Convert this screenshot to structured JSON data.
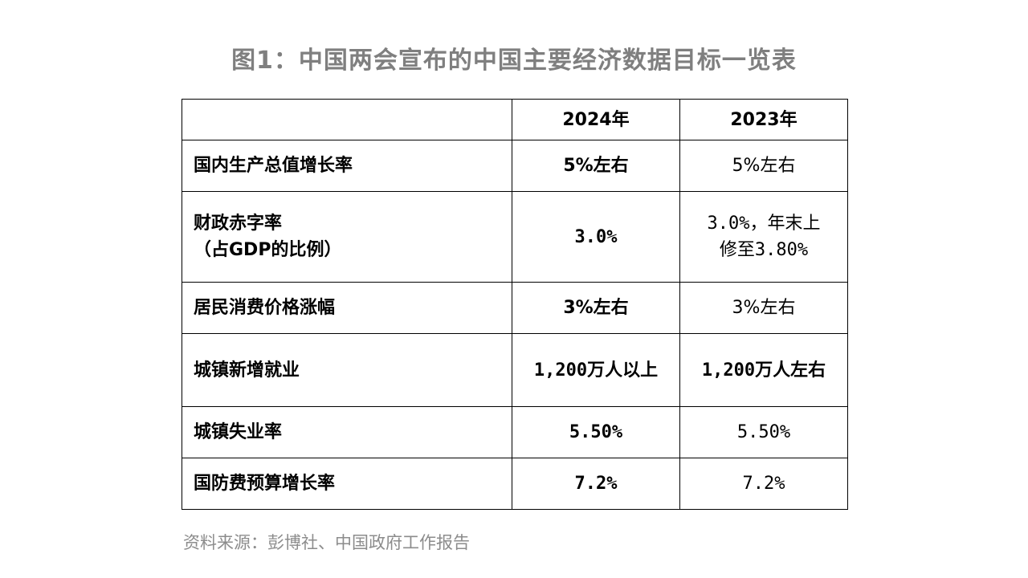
{
  "title": "图1：中国两会宣布的中国主要经济数据目标一览表",
  "table": {
    "header": {
      "label": "",
      "col_2024": "2024年",
      "col_2023": "2023年"
    },
    "rows": [
      {
        "label": "国内生产总值增长率",
        "v2024": "5%左右",
        "v2023": "5%左右"
      },
      {
        "label_line1": "财政赤字率",
        "label_line2": "（占GDP的比例）",
        "v2024": "3.0%",
        "v2023_line1": "3.0%，年末上",
        "v2023_line2": "修至3.80%"
      },
      {
        "label": "居民消费价格涨幅",
        "v2024": "3%左右",
        "v2023": "3%左右"
      },
      {
        "label": "城镇新增就业",
        "v2024": "1,200万人以上",
        "v2023": "1,200万人左右"
      },
      {
        "label": "城镇失业率",
        "v2024": "5.50%",
        "v2023": "5.50%"
      },
      {
        "label": "国防费预算增长率",
        "v2024": "7.2%",
        "v2023": "7.2%"
      }
    ]
  },
  "source": "资料来源：彭博社、中国政府工作报告",
  "colors": {
    "title": "#7f7f7f",
    "source": "#8c8c8c",
    "border": "#000000"
  }
}
